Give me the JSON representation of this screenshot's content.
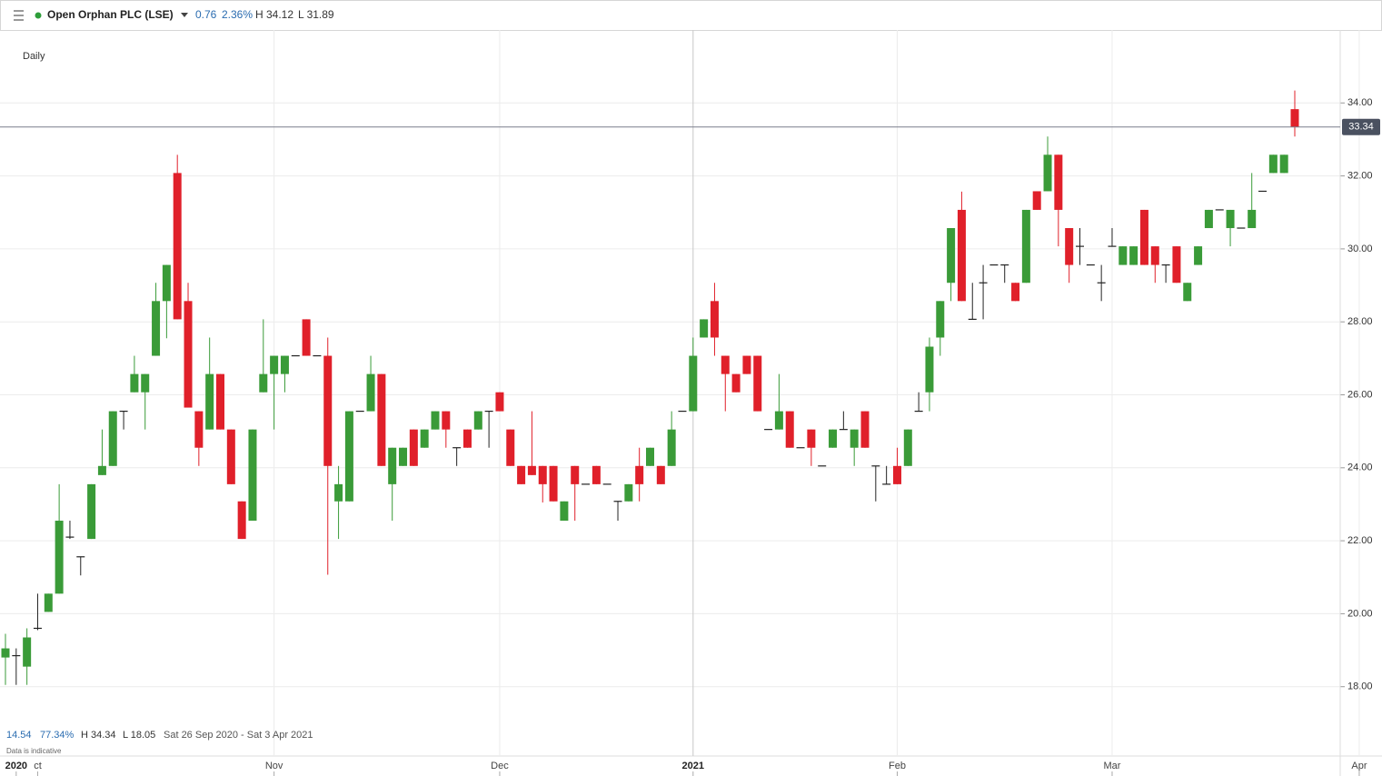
{
  "header": {
    "title": "Open Orphan PLC (LSE)",
    "change": "0.76",
    "change_pct": "2.36%",
    "high": "H 34.12",
    "low": "L 31.89"
  },
  "footer": {
    "change": "14.54",
    "change_pct": "77.34%",
    "high": "H 34.34",
    "low": "L 18.05",
    "range": "Sat 26 Sep 2020 - Sat 3 Apr 2021",
    "note": "Data is indicative"
  },
  "chart_data": {
    "type": "candlestick",
    "interval_label": "Daily",
    "up_color": "#3a9b38",
    "down_color": "#e0202a",
    "flat_color": "#222222",
    "ylim": [
      16.1,
      36.0
    ],
    "yticks": [
      {
        "value": 18,
        "label": "18.00"
      },
      {
        "value": 20,
        "label": "20.00"
      },
      {
        "value": 22,
        "label": "22.00"
      },
      {
        "value": 24,
        "label": "24.00"
      },
      {
        "value": 26,
        "label": "26.00"
      },
      {
        "value": 28,
        "label": "28.00"
      },
      {
        "value": 30,
        "label": "30.00"
      },
      {
        "value": 32,
        "label": "32.00"
      },
      {
        "value": 34,
        "label": "34.00"
      }
    ],
    "grid": true,
    "last_price": 33.34,
    "categories": [
      null,
      "2020",
      null,
      "ct",
      null,
      null,
      null,
      null,
      null,
      null,
      null,
      null,
      null,
      null,
      null,
      null,
      null,
      null,
      null,
      null,
      null,
      null,
      null,
      null,
      null,
      "Nov",
      null,
      null,
      null,
      null,
      null,
      null,
      null,
      null,
      null,
      null,
      null,
      null,
      null,
      null,
      null,
      null,
      null,
      null,
      null,
      null,
      "Dec",
      null,
      null,
      null,
      null,
      null,
      null,
      null,
      null,
      null,
      null,
      null,
      null,
      null,
      null,
      null,
      null,
      null,
      "2021",
      null,
      null,
      null,
      null,
      null,
      null,
      null,
      null,
      null,
      null,
      null,
      null,
      null,
      null,
      null,
      null,
      null,
      null,
      "Feb",
      null,
      null,
      null,
      null,
      null,
      null,
      null,
      null,
      null,
      null,
      null,
      null,
      null,
      null,
      null,
      null,
      null,
      null,
      null,
      "Mar",
      null,
      null,
      null,
      null,
      null,
      null,
      null,
      null,
      null,
      null,
      null,
      null,
      null,
      null,
      null,
      null,
      null,
      null,
      null,
      null,
      null,
      null,
      "Apr"
    ],
    "values": [
      [
        18.8,
        19.45,
        18.05,
        19.05
      ],
      [
        18.85,
        19.05,
        18.05,
        18.85
      ],
      [
        18.55,
        19.6,
        18.05,
        19.35
      ],
      [
        19.6,
        20.55,
        19.55,
        19.6
      ],
      [
        20.05,
        20.55,
        20.05,
        20.55
      ],
      [
        20.55,
        23.55,
        20.55,
        22.55
      ],
      [
        22.1,
        22.55,
        22.05,
        22.1
      ],
      [
        21.56,
        21.56,
        21.05,
        21.56
      ],
      [
        22.05,
        23.55,
        22.05,
        23.55
      ],
      [
        23.8,
        25.05,
        23.8,
        24.05
      ],
      [
        24.05,
        25.55,
        24.05,
        25.55
      ],
      [
        25.55,
        25.55,
        25.05,
        25.55
      ],
      [
        26.07,
        27.07,
        26.07,
        26.57
      ],
      [
        26.07,
        26.57,
        25.05,
        26.57
      ],
      [
        27.07,
        29.07,
        27.07,
        28.57
      ],
      [
        28.57,
        29.56,
        27.55,
        29.56
      ],
      [
        32.08,
        32.58,
        28.07,
        28.07
      ],
      [
        28.57,
        29.07,
        25.65,
        25.65
      ],
      [
        25.55,
        25.55,
        24.05,
        24.55
      ],
      [
        25.05,
        27.57,
        25.05,
        26.57
      ],
      [
        26.57,
        26.57,
        25.05,
        25.05
      ],
      [
        25.05,
        25.05,
        23.55,
        23.55
      ],
      [
        23.08,
        23.08,
        22.05,
        22.05
      ],
      [
        22.55,
        25.05,
        22.55,
        25.05
      ],
      [
        26.07,
        28.07,
        26.07,
        26.57
      ],
      [
        26.57,
        27.07,
        25.05,
        27.07
      ],
      [
        26.57,
        27.07,
        26.07,
        27.07
      ],
      [
        27.07,
        27.07,
        27.07,
        27.07
      ],
      [
        28.07,
        28.07,
        27.07,
        27.07
      ],
      [
        27.07,
        27.07,
        27.07,
        27.07
      ],
      [
        27.07,
        27.57,
        21.07,
        24.05
      ],
      [
        23.08,
        24.05,
        22.05,
        23.55
      ],
      [
        23.08,
        25.55,
        23.08,
        25.55
      ],
      [
        25.55,
        25.55,
        25.55,
        25.55
      ],
      [
        25.55,
        27.07,
        25.55,
        26.57
      ],
      [
        26.57,
        26.57,
        24.05,
        24.05
      ],
      [
        23.55,
        24.55,
        22.55,
        24.55
      ],
      [
        24.05,
        24.55,
        24.05,
        24.55
      ],
      [
        25.05,
        25.05,
        24.05,
        24.05
      ],
      [
        24.55,
        25.05,
        24.55,
        25.05
      ],
      [
        25.05,
        25.55,
        25.05,
        25.55
      ],
      [
        25.55,
        25.55,
        24.55,
        25.05
      ],
      [
        24.55,
        24.55,
        24.05,
        24.55
      ],
      [
        25.05,
        25.05,
        24.55,
        24.55
      ],
      [
        25.05,
        25.55,
        25.05,
        25.55
      ],
      [
        25.55,
        25.55,
        24.55,
        25.55
      ],
      [
        26.07,
        26.07,
        25.55,
        25.55
      ],
      [
        25.05,
        25.05,
        24.05,
        24.05
      ],
      [
        24.05,
        24.05,
        23.55,
        23.55
      ],
      [
        24.05,
        25.55,
        23.8,
        23.8
      ],
      [
        24.05,
        24.05,
        23.05,
        23.55
      ],
      [
        24.05,
        24.05,
        23.08,
        23.08
      ],
      [
        22.55,
        23.08,
        22.55,
        23.08
      ],
      [
        24.05,
        24.05,
        22.55,
        23.55
      ],
      [
        23.55,
        23.55,
        23.55,
        23.55
      ],
      [
        24.05,
        24.05,
        23.55,
        23.55
      ],
      [
        23.55,
        23.55,
        23.55,
        23.55
      ],
      [
        23.08,
        23.08,
        22.55,
        23.08
      ],
      [
        23.08,
        23.55,
        23.08,
        23.55
      ],
      [
        24.05,
        24.55,
        23.08,
        23.55
      ],
      [
        24.05,
        24.55,
        24.05,
        24.55
      ],
      [
        24.05,
        24.05,
        23.55,
        23.55
      ],
      [
        24.05,
        25.55,
        24.05,
        25.05
      ],
      [
        25.55,
        25.55,
        25.55,
        25.55
      ],
      [
        25.55,
        27.57,
        25.55,
        27.07
      ],
      [
        27.57,
        28.07,
        27.57,
        28.07
      ],
      [
        28.57,
        29.07,
        27.07,
        27.57
      ],
      [
        27.07,
        27.07,
        25.55,
        26.57
      ],
      [
        26.57,
        26.57,
        26.07,
        26.07
      ],
      [
        27.07,
        27.07,
        26.57,
        26.57
      ],
      [
        27.07,
        27.07,
        25.55,
        25.55
      ],
      [
        25.05,
        25.05,
        25.05,
        25.05
      ],
      [
        25.05,
        26.57,
        25.05,
        25.55
      ],
      [
        25.55,
        25.55,
        24.55,
        24.55
      ],
      [
        24.55,
        24.55,
        24.55,
        24.55
      ],
      [
        25.05,
        25.05,
        24.05,
        24.55
      ],
      [
        24.05,
        24.05,
        24.05,
        24.05
      ],
      [
        24.55,
        25.05,
        24.55,
        25.05
      ],
      [
        25.05,
        25.55,
        25.05,
        25.05
      ],
      [
        24.55,
        25.05,
        24.05,
        25.05
      ],
      [
        25.55,
        25.55,
        24.55,
        24.55
      ],
      [
        24.05,
        24.05,
        23.08,
        24.05
      ],
      [
        23.55,
        24.05,
        23.55,
        23.55
      ],
      [
        24.05,
        24.55,
        23.55,
        23.55
      ],
      [
        24.05,
        25.05,
        24.05,
        25.05
      ],
      [
        25.55,
        26.07,
        25.55,
        25.55
      ],
      [
        26.07,
        27.57,
        25.55,
        27.32
      ],
      [
        27.57,
        28.57,
        27.07,
        28.57
      ],
      [
        29.07,
        30.57,
        28.57,
        30.57
      ],
      [
        31.07,
        31.57,
        28.57,
        28.57
      ],
      [
        28.07,
        29.07,
        28.07,
        28.07
      ],
      [
        29.07,
        29.56,
        28.07,
        29.07
      ],
      [
        29.56,
        29.56,
        29.56,
        29.56
      ],
      [
        29.56,
        29.56,
        29.07,
        29.56
      ],
      [
        29.07,
        29.07,
        28.57,
        28.57
      ],
      [
        29.07,
        31.07,
        29.07,
        31.07
      ],
      [
        31.58,
        31.58,
        31.07,
        31.07
      ],
      [
        31.58,
        33.08,
        31.58,
        32.58
      ],
      [
        32.58,
        32.58,
        30.07,
        31.07
      ],
      [
        30.57,
        30.57,
        29.07,
        29.56
      ],
      [
        30.07,
        30.57,
        29.56,
        30.07
      ],
      [
        29.56,
        29.56,
        29.56,
        29.56
      ],
      [
        29.07,
        29.56,
        28.57,
        29.07
      ],
      [
        30.07,
        30.57,
        30.07,
        30.07
      ],
      [
        29.56,
        30.07,
        29.56,
        30.07
      ],
      [
        29.56,
        30.07,
        29.56,
        30.07
      ],
      [
        31.07,
        31.07,
        29.56,
        29.56
      ],
      [
        30.07,
        30.07,
        29.07,
        29.56
      ],
      [
        29.56,
        29.56,
        29.07,
        29.56
      ],
      [
        30.07,
        30.07,
        29.07,
        29.07
      ],
      [
        28.57,
        29.07,
        28.57,
        29.07
      ],
      [
        29.56,
        30.07,
        29.56,
        30.07
      ],
      [
        30.57,
        31.07,
        30.57,
        31.07
      ],
      [
        31.07,
        31.07,
        31.07,
        31.07
      ],
      [
        30.57,
        31.07,
        30.07,
        31.07
      ],
      [
        30.57,
        30.57,
        30.57,
        30.57
      ],
      [
        30.57,
        32.08,
        30.57,
        31.07
      ],
      [
        31.58,
        31.58,
        31.58,
        31.58
      ],
      [
        32.08,
        32.58,
        32.08,
        32.58
      ],
      [
        32.08,
        32.58,
        32.08,
        32.58
      ],
      [
        33.83,
        34.34,
        33.08,
        33.34
      ],
      null,
      null,
      null,
      null,
      null,
      null
    ]
  }
}
